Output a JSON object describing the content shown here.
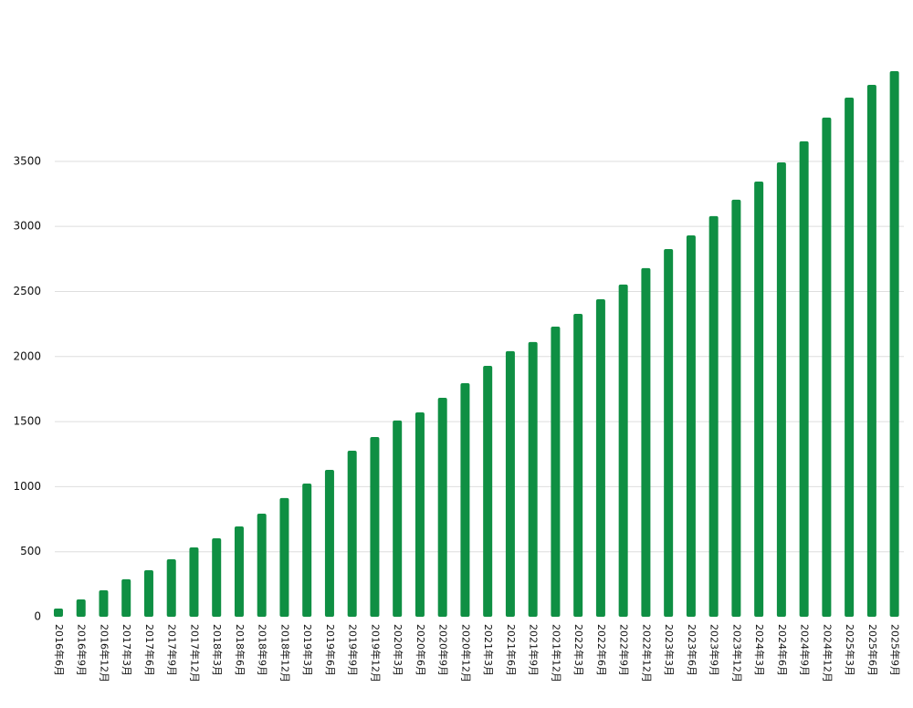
{
  "chart_data": {
    "type": "bar",
    "categories": [
      "2016年6月",
      "2016年9月",
      "2016年12月",
      "2017年3月",
      "2017年6月",
      "2017年9月",
      "2017年12月",
      "2018年3月",
      "2018年6月",
      "2018年9月",
      "2018年12月",
      "2019年3月",
      "2019年6月",
      "2019年9月",
      "2019年12月",
      "2020年3月",
      "2020年6月",
      "2020年9月",
      "2020年12月",
      "2021年3月",
      "2021年6月",
      "2021年9月",
      "2021年12月",
      "2022年3月",
      "2022年6月",
      "2022年9月",
      "2022年12月",
      "2023年3月",
      "2023年6月",
      "2023年9月",
      "2023年12月",
      "2024年3月",
      "2024年6月",
      "2024年9月",
      "2024年12月",
      "2025年3月",
      "2025年6月",
      "2025年9月"
    ],
    "values": [
      63,
      133,
      203,
      288,
      358,
      442,
      533,
      603,
      694,
      792,
      912,
      1024,
      1129,
      1276,
      1381,
      1508,
      1571,
      1683,
      1795,
      1928,
      2041,
      2111,
      2230,
      2328,
      2440,
      2553,
      2679,
      2826,
      2931,
      3079,
      3205,
      3345,
      3492,
      3654,
      3836,
      3990,
      4088,
      4193
    ],
    "color": "#0f8f43",
    "ylim": [
      0,
      4200
    ],
    "yticks": [
      0,
      500,
      1000,
      1500,
      2000,
      2500,
      3000,
      3500
    ],
    "grid": true
  }
}
